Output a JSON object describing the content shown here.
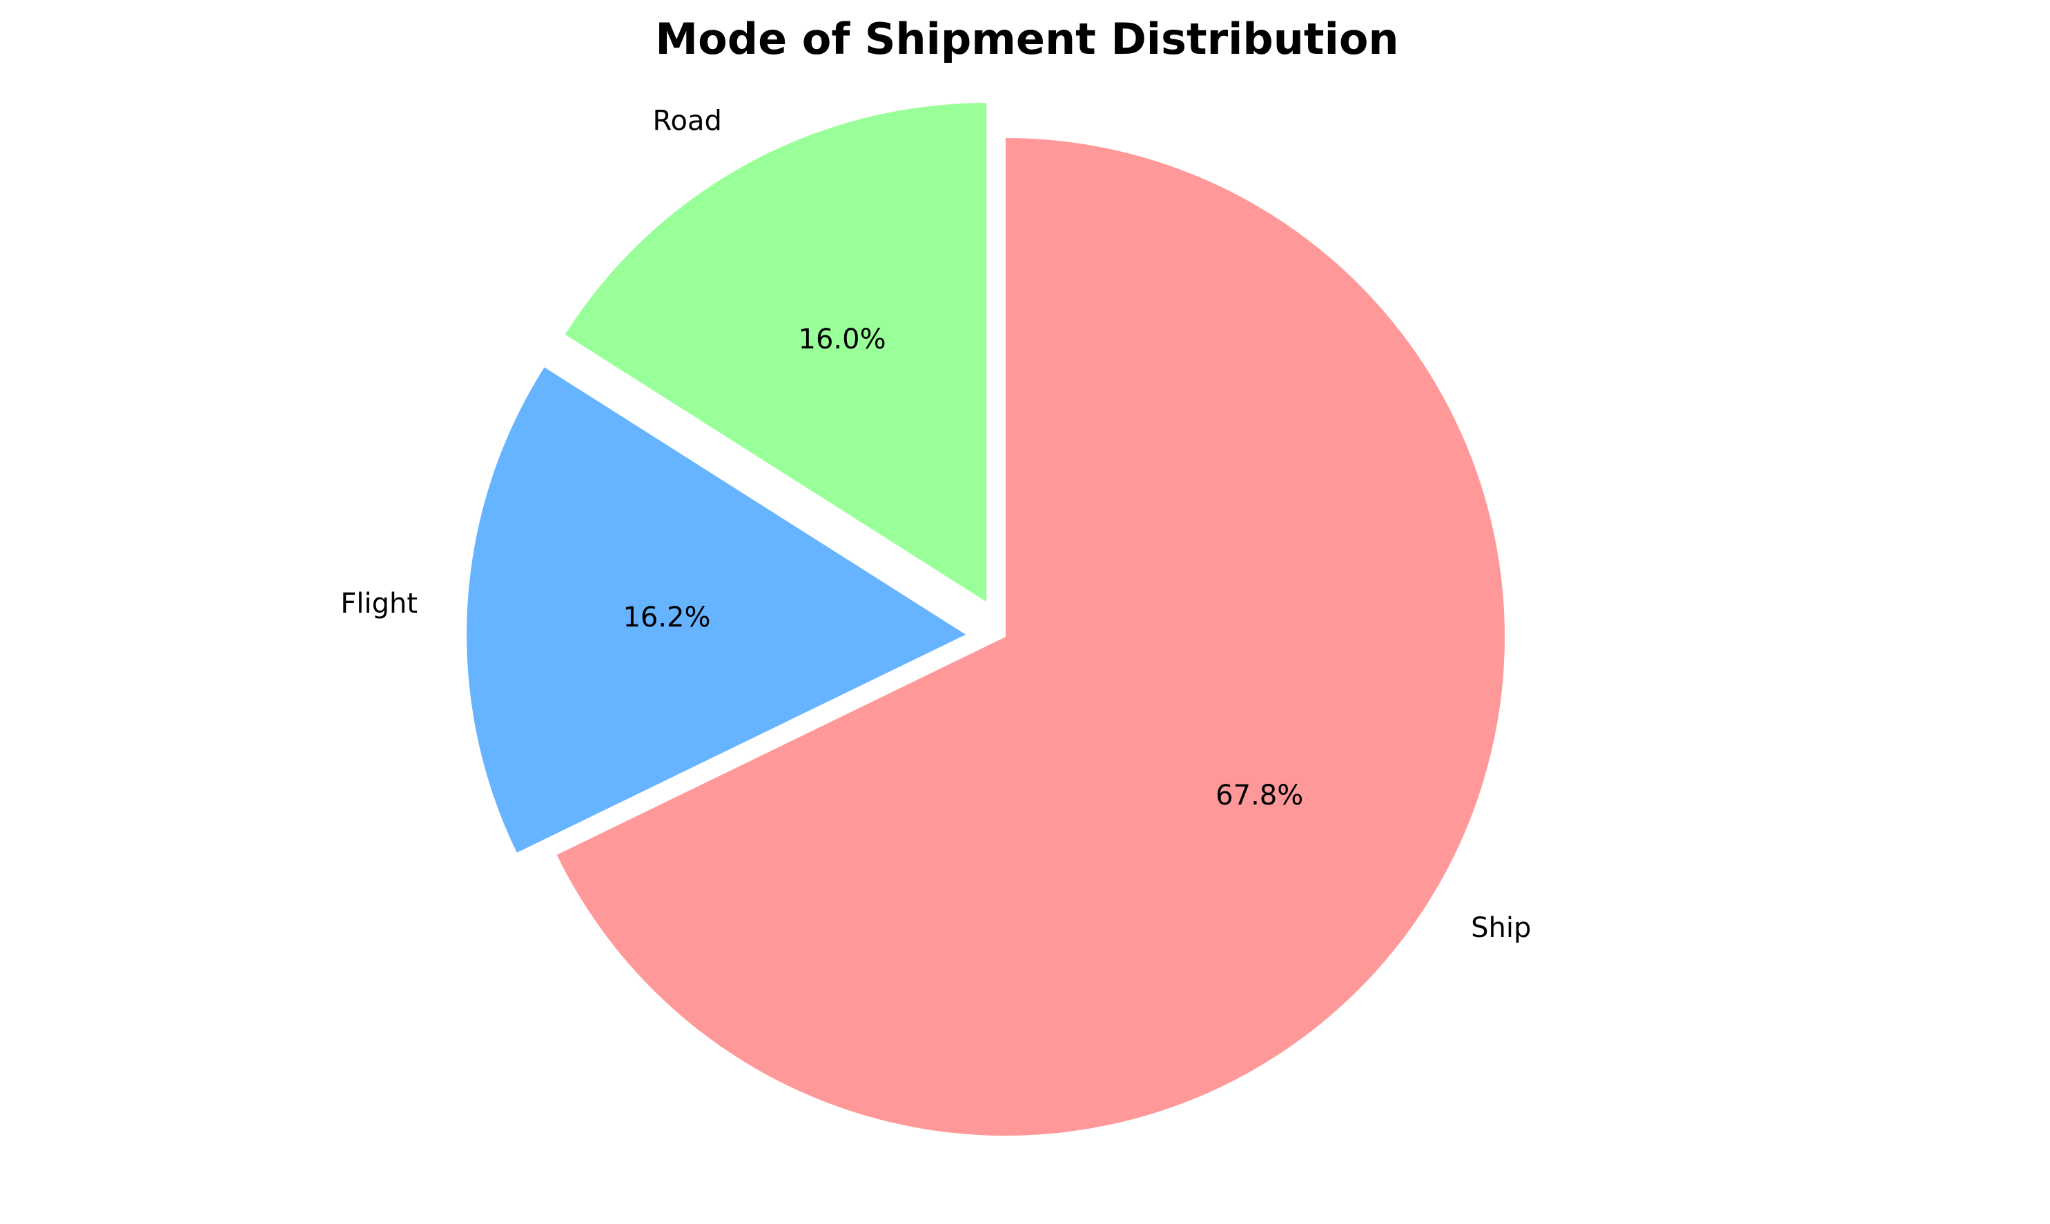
{
  "chart_data": {
    "type": "pie",
    "title": "Mode of Shipment Distribution",
    "categories": [
      "Ship",
      "Flight",
      "Road"
    ],
    "values": [
      67.8,
      16.2,
      16.0
    ],
    "value_labels": [
      "67.8%",
      "16.2%",
      "16.0%"
    ],
    "colors": [
      "#ff9999",
      "#66b3ff",
      "#99ff99"
    ],
    "start_angle_deg": 90,
    "direction": "clockwise",
    "exploded": [
      false,
      true,
      true
    ]
  }
}
